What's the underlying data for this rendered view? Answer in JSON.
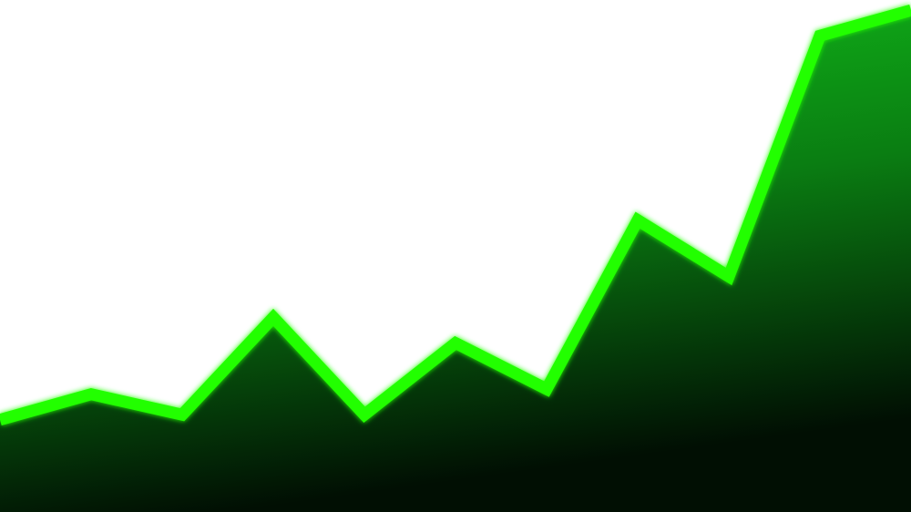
{
  "chart_data": {
    "type": "area",
    "title": "",
    "xlabel": "",
    "ylabel": "",
    "grid": false,
    "legend": "none",
    "x": [
      0,
      1,
      2,
      3,
      4,
      5,
      6,
      7,
      8,
      9,
      10
    ],
    "ylim": [
      0,
      100
    ],
    "series": [
      {
        "values": [
          18,
          23,
          19,
          38,
          19,
          33,
          24,
          57,
          46,
          93,
          98
        ]
      }
    ]
  },
  "colors": {
    "background": "#ffffff",
    "line": "#22ff00",
    "line_glow": "#11cc00",
    "fill_top": "#12c41a",
    "fill_mid": "#0a7d12",
    "fill_bottom": "#010f03"
  }
}
